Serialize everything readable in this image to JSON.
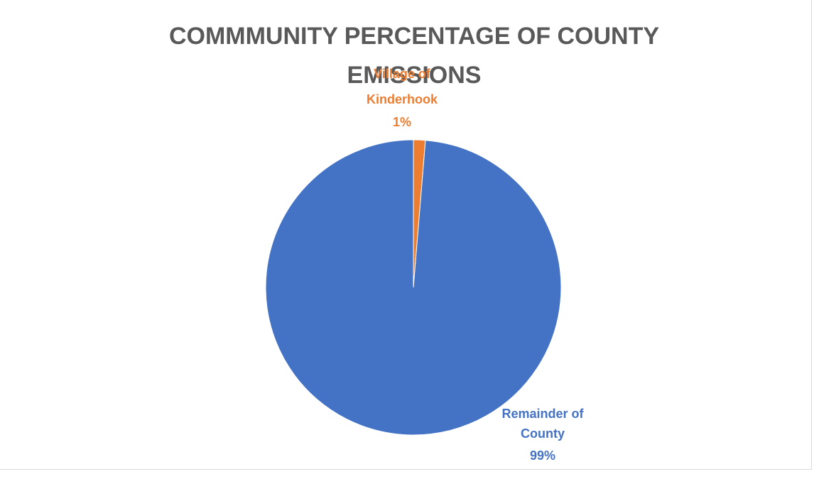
{
  "chart_data": {
    "type": "pie",
    "title_lines": [
      "COMMMUNITY PERCENTAGE OF COUNTY",
      "EMISSIONS"
    ],
    "slices": [
      {
        "label_lines": [
          "Village of",
          "Kinderhook"
        ],
        "pct_label": "1%",
        "value": 1.3,
        "color": "#ED7D31"
      },
      {
        "label_lines": [
          "Remainder of",
          "County"
        ],
        "pct_label": "99%",
        "value": 98.7,
        "color": "#4472C4"
      }
    ],
    "start_angle_deg": 0,
    "legend": "none"
  }
}
